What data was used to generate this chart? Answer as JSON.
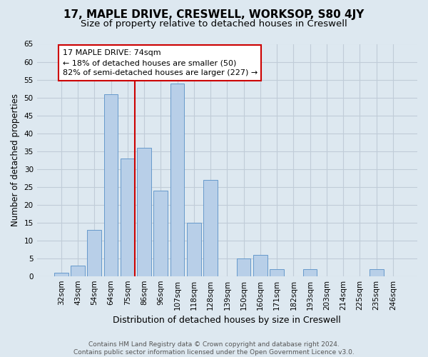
{
  "title": "17, MAPLE DRIVE, CRESWELL, WORKSOP, S80 4JY",
  "subtitle": "Size of property relative to detached houses in Creswell",
  "xlabel": "Distribution of detached houses by size in Creswell",
  "ylabel": "Number of detached properties",
  "categories": [
    "32sqm",
    "43sqm",
    "54sqm",
    "64sqm",
    "75sqm",
    "86sqm",
    "96sqm",
    "107sqm",
    "118sqm",
    "128sqm",
    "139sqm",
    "150sqm",
    "160sqm",
    "171sqm",
    "182sqm",
    "193sqm",
    "203sqm",
    "214sqm",
    "225sqm",
    "235sqm",
    "246sqm"
  ],
  "values": [
    1,
    3,
    13,
    51,
    33,
    36,
    24,
    54,
    15,
    27,
    0,
    5,
    6,
    2,
    0,
    2,
    0,
    0,
    0,
    2,
    0
  ],
  "bar_color": "#b8cfe8",
  "bar_edge_color": "#6699cc",
  "vline_after_index": 4,
  "vline_color": "#cc0000",
  "annotation_line1": "17 MAPLE DRIVE: 74sqm",
  "annotation_line2": "← 18% of detached houses are smaller (50)",
  "annotation_line3": "82% of semi-detached houses are larger (227) →",
  "annotation_box_facecolor": "#ffffff",
  "annotation_box_edgecolor": "#cc0000",
  "ylim": [
    0,
    65
  ],
  "yticks": [
    0,
    5,
    10,
    15,
    20,
    25,
    30,
    35,
    40,
    45,
    50,
    55,
    60,
    65
  ],
  "bg_color": "#dde8f0",
  "plot_bg_color": "#dde8f0",
  "grid_color": "#c0ccd8",
  "footer_line1": "Contains HM Land Registry data © Crown copyright and database right 2024.",
  "footer_line2": "Contains public sector information licensed under the Open Government Licence v3.0.",
  "title_fontsize": 11,
  "subtitle_fontsize": 9.5,
  "ylabel_fontsize": 8.5,
  "xlabel_fontsize": 9,
  "tick_fontsize": 7.5,
  "annotation_fontsize": 8,
  "footer_fontsize": 6.5
}
